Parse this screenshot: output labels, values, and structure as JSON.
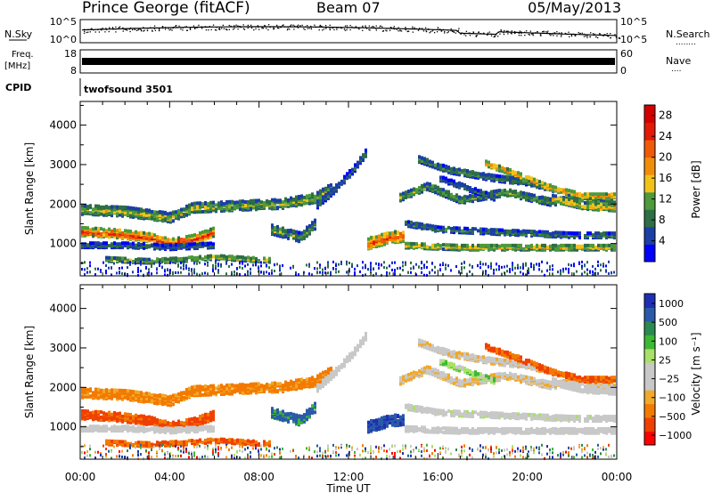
{
  "header": {
    "station": "Prince George (fitACF)",
    "beam": "Beam 07",
    "date": "05/May/2013"
  },
  "left_labels": {
    "nsky": "N.Sky",
    "freq": "Freq.",
    "freq_unit": "[MHz]",
    "cpid": "CPID"
  },
  "right_labels": {
    "nsearch": "N.Search",
    "nsearch_dots": "........",
    "nave": "Nave",
    "nave_dots": "...."
  },
  "cpid_text": "twofsound 3501",
  "ticks": {
    "noise_top": "10^5",
    "noise_bottom": "10^0",
    "freq_top": "18",
    "freq_bottom": "8",
    "nave_top": "60",
    "nave_bottom": "0"
  },
  "colors": {
    "power": [
      "#0000ff",
      "#1c3fa6",
      "#2e6f45",
      "#4e9a3c",
      "#f2c21a",
      "#f18e08",
      "#ee5a07",
      "#e31a06",
      "#d40000"
    ],
    "velocity": [
      "#ff0000",
      "#f04000",
      "#f37a00",
      "#f0a92b",
      "#c8c8c8",
      "#c8c8c8",
      "#a9e06a",
      "#3db834",
      "#2d8a4f",
      "#2a5aa8",
      "#1f2fb4"
    ]
  },
  "chart_data": [
    {
      "type": "heatmap",
      "name": "power",
      "ylabel": "Slant Range [km]",
      "ytick_labels": [
        "1000",
        "2000",
        "3000",
        "4000"
      ],
      "yticks": [
        1000,
        2000,
        3000,
        4000
      ],
      "ylim": [
        180,
        4600
      ],
      "xlim": [
        0,
        24
      ],
      "colorbar_label": "Power [dB]",
      "colorbar_ticks": [
        "4",
        "8",
        "12",
        "16",
        "20",
        "24",
        "28"
      ],
      "colorbar_range": [
        0,
        30
      ]
    },
    {
      "type": "heatmap",
      "name": "velocity",
      "xlabel": "Time UT",
      "xtick_labels": [
        "00:00",
        "04:00",
        "08:00",
        "12:00",
        "16:00",
        "20:00",
        "00:00"
      ],
      "xticks": [
        0,
        4,
        8,
        12,
        16,
        20,
        24
      ],
      "ylabel": "Slant Range [km]",
      "ytick_labels": [
        "1000",
        "2000",
        "3000",
        "4000"
      ],
      "yticks": [
        1000,
        2000,
        3000,
        4000
      ],
      "ylim": [
        180,
        4600
      ],
      "xlim": [
        0,
        24
      ],
      "colorbar_label": "Velocity [m s⁻¹]",
      "colorbar_ticks": [
        "1000",
        "500",
        "100",
        "25",
        "−25",
        "−100",
        "−500",
        "−1000"
      ]
    }
  ]
}
